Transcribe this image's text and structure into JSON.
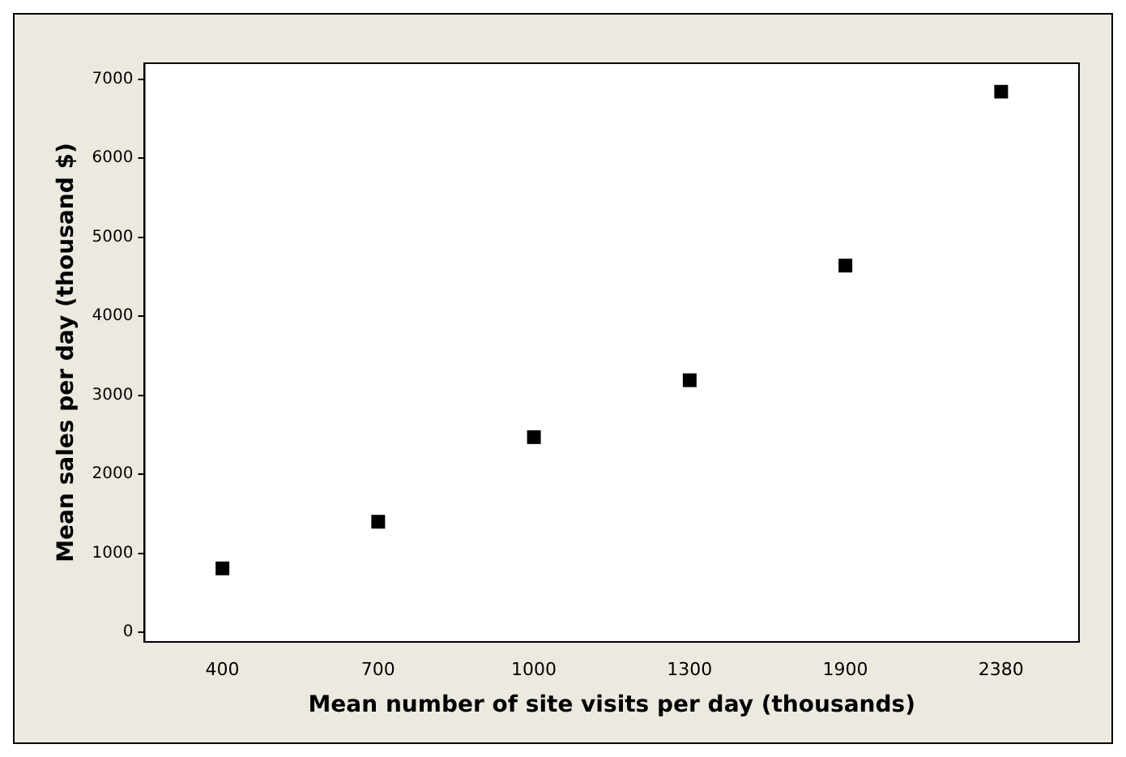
{
  "chart_data": {
    "type": "scatter",
    "xlabel": "Mean number of site visits per day (thousands)",
    "ylabel": "Mean sales per day (thousand $)",
    "categories": [
      "400",
      "700",
      "1000",
      "1300",
      "1900",
      "2380"
    ],
    "series": [
      {
        "color": "#000000",
        "values": [
          810,
          1400,
          2470,
          3190,
          4640,
          6840
        ]
      }
    ],
    "ylim": [
      -120,
      7200
    ],
    "yticks": [
      0,
      1000,
      2000,
      3000,
      4000,
      5000,
      6000,
      7000
    ],
    "marker": "square",
    "grid": false,
    "legend": false
  }
}
